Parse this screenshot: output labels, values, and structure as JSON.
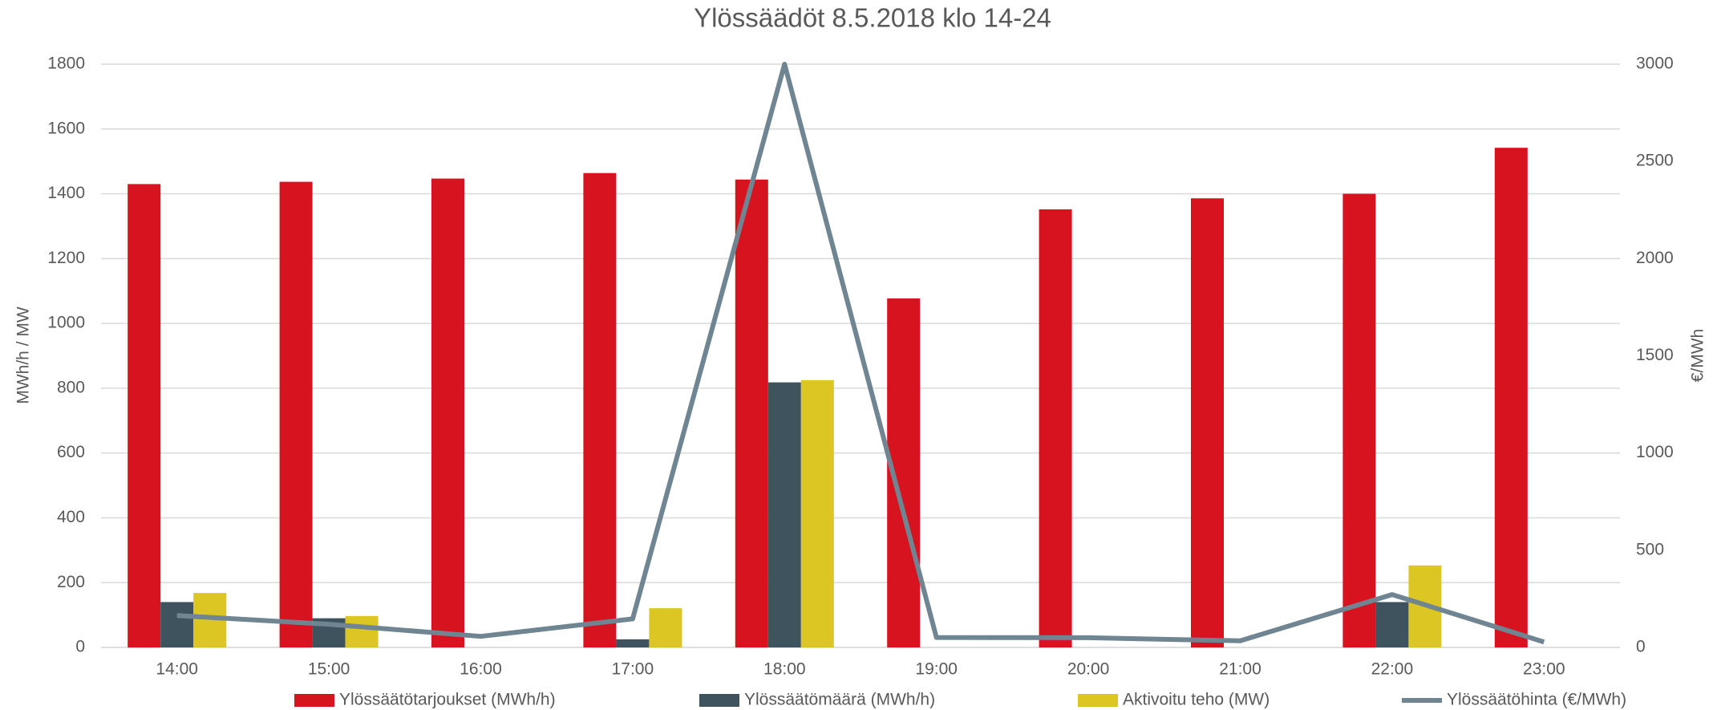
{
  "chart_data": {
    "type": "bar",
    "title": "Ylössäädöt 8.5.2018 klo 14-24",
    "y_label": "MWh/h / MW",
    "y2_label": "€/MWh",
    "categories": [
      "14:00",
      "15:00",
      "16:00",
      "17:00",
      "18:00",
      "19:00",
      "20:00",
      "21:00",
      "22:00",
      "23:00"
    ],
    "series": [
      {
        "name": "Ylössäätötarjoukset (MWh/h)",
        "color": "#d7131f",
        "type": "bar",
        "values": [
          1430,
          1437,
          1447,
          1464,
          1444,
          1077,
          1352,
          1386,
          1400,
          1542
        ]
      },
      {
        "name": "Ylössäätömäärä (MWh/h)",
        "color": "#3e535e",
        "type": "bar",
        "values": [
          140,
          90,
          0,
          25,
          818,
          0,
          0,
          0,
          140,
          0
        ]
      },
      {
        "name": "Aktivoitu teho (MW)",
        "color": "#dbc623",
        "type": "bar",
        "values": [
          168,
          97,
          0,
          121,
          825,
          0,
          0,
          0,
          253,
          0
        ]
      },
      {
        "name": "Ylössäätöhinta (€/MWh)",
        "color": "#6f8591",
        "type": "line",
        "axis": "y2",
        "values": [
          164,
          119,
          57,
          147,
          3000,
          51,
          50,
          34,
          272,
          28
        ]
      }
    ],
    "ylim": [
      0,
      1800
    ],
    "yticks": [
      0,
      200,
      400,
      600,
      800,
      1000,
      1200,
      1400,
      1600,
      1800
    ],
    "y2lim": [
      0,
      3000
    ],
    "y2ticks": [
      0,
      500,
      1000,
      1500,
      2000,
      2500,
      3000
    ],
    "grid": true,
    "legend": "bottom"
  }
}
